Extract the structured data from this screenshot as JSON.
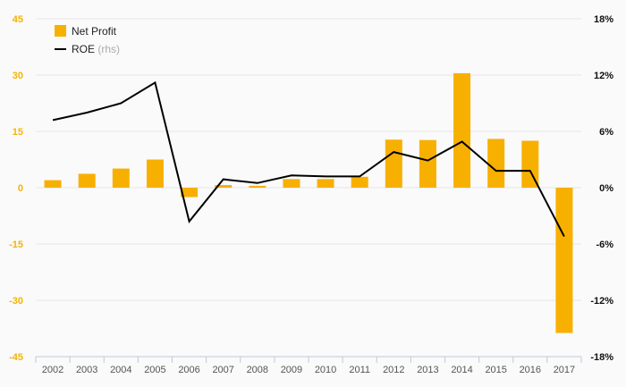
{
  "colors": {
    "bar": "#f8b000",
    "line": "#000000",
    "grid": "#e6e6e6",
    "left_ticks": "#f5b400",
    "right_ticks": "#111111"
  },
  "chart_data": {
    "type": "bar",
    "categories": [
      "2002",
      "2003",
      "2004",
      "2005",
      "2006",
      "2007",
      "2008",
      "2009",
      "2010",
      "2011",
      "2012",
      "2013",
      "2014",
      "2015",
      "2016",
      "2017"
    ],
    "series": [
      {
        "name": "Net Profit",
        "type": "bar",
        "axis": "left",
        "values": [
          2,
          3.7,
          5.1,
          7.5,
          -2.5,
          0.7,
          0.5,
          2.3,
          2.3,
          2.9,
          12.8,
          12.7,
          30.5,
          13,
          12.5,
          -38.7
        ]
      },
      {
        "name": "ROE",
        "name_suffix": "(rhs)",
        "type": "line",
        "axis": "right",
        "values": [
          7.2,
          8.0,
          9.0,
          11.2,
          -3.6,
          0.9,
          0.5,
          1.3,
          1.2,
          1.2,
          3.8,
          2.9,
          4.9,
          1.8,
          1.8,
          -5.2
        ]
      }
    ],
    "left_axis": {
      "min": -45,
      "max": 45,
      "ticks": [
        "45",
        "30",
        "15",
        "0",
        "-15",
        "-30",
        "-45"
      ]
    },
    "right_axis": {
      "min": -18,
      "max": 18,
      "ticks": [
        "18%",
        "12%",
        "6%",
        "0%",
        "-6%",
        "-12%",
        "-18%"
      ]
    },
    "grid": true,
    "legend": "top-left",
    "title": "",
    "xlabel": "",
    "ylabel": ""
  }
}
